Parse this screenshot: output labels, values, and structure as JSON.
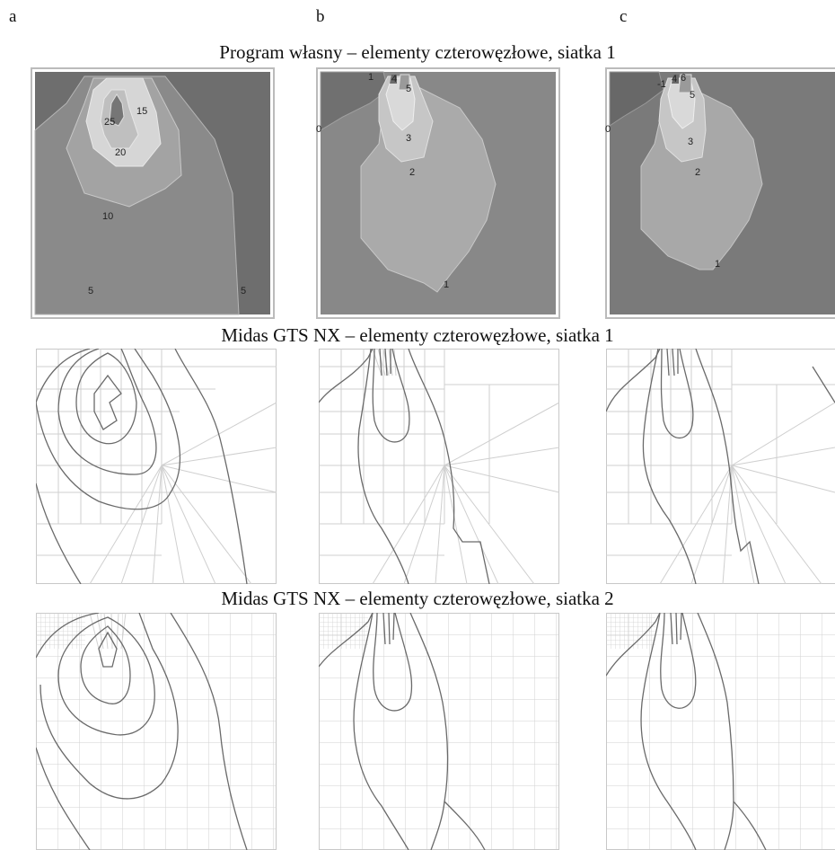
{
  "columns": [
    "a",
    "b",
    "c"
  ],
  "rows": [
    {
      "title": "Program własny – elementy czterowęzłowe, siatka 1"
    },
    {
      "title": "Midas GTS NX – elementy czterowęzłowe, siatka 1"
    },
    {
      "title": "Midas GTS NX – elementy czterowęzłowe, siatka 2"
    }
  ],
  "contour_labels": {
    "a": [
      "25",
      "15",
      "20",
      "10",
      "5",
      "5"
    ],
    "b": [
      "1",
      "4",
      "5",
      "0",
      "3",
      "2",
      "1"
    ],
    "c": [
      "-1",
      "4",
      "6",
      "5",
      "0",
      "3",
      "2",
      "1"
    ]
  },
  "colors": {
    "fill_dark": "#6e6e6e",
    "fill_mid": "#8a8a8a",
    "fill_light": "#a9a9a9",
    "fill_lighter": "#c2c2c2",
    "fill_lightest": "#d9d9d9",
    "mesh_line": "#c8c8c8",
    "contour_line": "#5a5a5a"
  }
}
